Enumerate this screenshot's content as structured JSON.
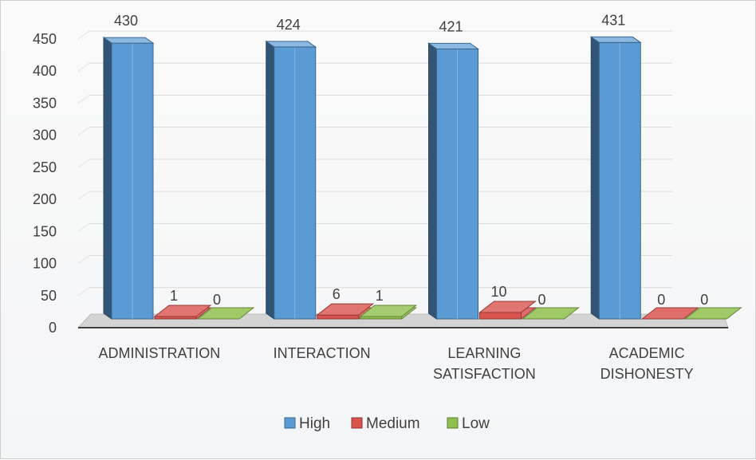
{
  "chart_data": {
    "type": "bar",
    "categories": [
      [
        "ADMINISTRATION"
      ],
      [
        "INTERACTION"
      ],
      [
        "LEARNING",
        "SATISFACTION"
      ],
      [
        "ACADEMIC",
        "DISHONESTY"
      ]
    ],
    "series": [
      {
        "name": "High",
        "values": [
          430,
          424,
          421,
          431
        ],
        "color": "#5b9bd5"
      },
      {
        "name": "Medium",
        "values": [
          1,
          6,
          10,
          0
        ],
        "color": "#d9534f"
      },
      {
        "name": "Low",
        "values": [
          0,
          1,
          0,
          0
        ],
        "color": "#8fbf4d"
      }
    ],
    "ylim": [
      0,
      450
    ],
    "yticks": [
      0,
      50,
      100,
      150,
      200,
      250,
      300,
      350,
      400,
      450
    ],
    "grid": true,
    "legend_position": "bottom",
    "style": "3d-column"
  }
}
